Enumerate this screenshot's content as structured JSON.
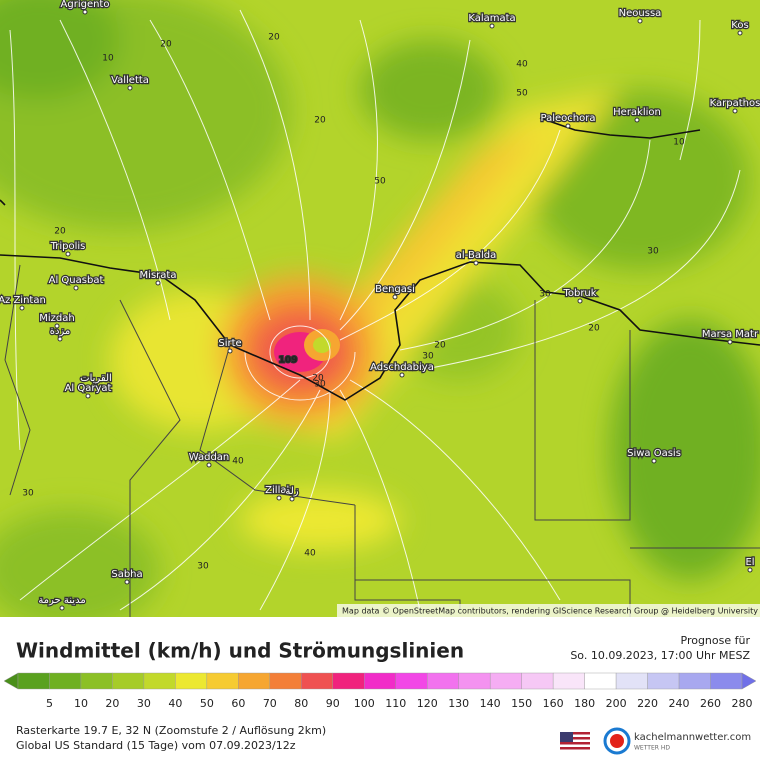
{
  "map": {
    "places": [
      "Agrigento",
      "Valletta",
      "Kalamata",
      "Neoussa",
      "Kos",
      "Paleochora",
      "Heraklion",
      "Karpathos",
      "Tripolis",
      "Al Quasbat",
      "Misrata",
      "Az Zintan",
      "Mizdah",
      "مزدة",
      "القريات",
      "Al Qaryat",
      "Sirte",
      "Bengasi",
      "al-Balda",
      "Tobruk",
      "Marsa Matr",
      "Adschdabiya",
      "Siwa Oasis",
      "Waddan",
      "Zillah",
      "زلة",
      "Sabha",
      "مدينة حرمة",
      "El"
    ],
    "contour_labels": [
      "20",
      "10",
      "20",
      "20",
      "40",
      "50",
      "50",
      "20",
      "20",
      "30",
      "30",
      "20",
      "109",
      "30",
      "30",
      "40",
      "40",
      "30",
      "20",
      "10",
      "30"
    ],
    "attribution": "Map data © OpenStreetMap contributors, rendering GIScience Research Group @ Heidelberg University"
  },
  "footer": {
    "title": "Windmittel (km/h) und Strömungslinien",
    "forecast_label": "Prognose für",
    "forecast_time": "So. 10.09.2023, 17:00 Uhr MESZ",
    "info": [
      "Rasterkarte 19.7 E, 32 N (Zoomstufe 2 / Auflösung 2km)",
      "Global US Standard (15 Tage) vom  07.09.2023/12z"
    ],
    "logo": "kachelmannwetter.com",
    "logo_sub": "WETTER HD"
  },
  "legend": {
    "steps": [
      {
        "label": 5,
        "color": "#5aa11f"
      },
      {
        "label": 10,
        "color": "#6fb022"
      },
      {
        "label": 20,
        "color": "#8cc026"
      },
      {
        "label": 30,
        "color": "#a6cc28"
      },
      {
        "label": 40,
        "color": "#c2d92b"
      },
      {
        "label": 50,
        "color": "#ece831"
      },
      {
        "label": 60,
        "color": "#f6cb32"
      },
      {
        "label": 70,
        "color": "#f6a631"
      },
      {
        "label": 80,
        "color": "#f37f38"
      },
      {
        "label": 90,
        "color": "#ef5151"
      },
      {
        "label": 100,
        "color": "#f0237d"
      },
      {
        "label": 110,
        "color": "#f12cc8"
      },
      {
        "label": 120,
        "color": "#f247e6"
      },
      {
        "label": 130,
        "color": "#f272ee"
      },
      {
        "label": 140,
        "color": "#f492f0"
      },
      {
        "label": 150,
        "color": "#f5adf3"
      },
      {
        "label": 160,
        "color": "#f6c8f5"
      },
      {
        "label": 180,
        "color": "#f9e5f9"
      },
      {
        "label": 200,
        "color": "#ffffff"
      },
      {
        "label": 220,
        "color": "#e2e2f7"
      },
      {
        "label": 240,
        "color": "#c6c6f3"
      },
      {
        "label": 260,
        "color": "#a8a8ef"
      },
      {
        "label": 280,
        "color": "#8b8bec"
      }
    ]
  }
}
